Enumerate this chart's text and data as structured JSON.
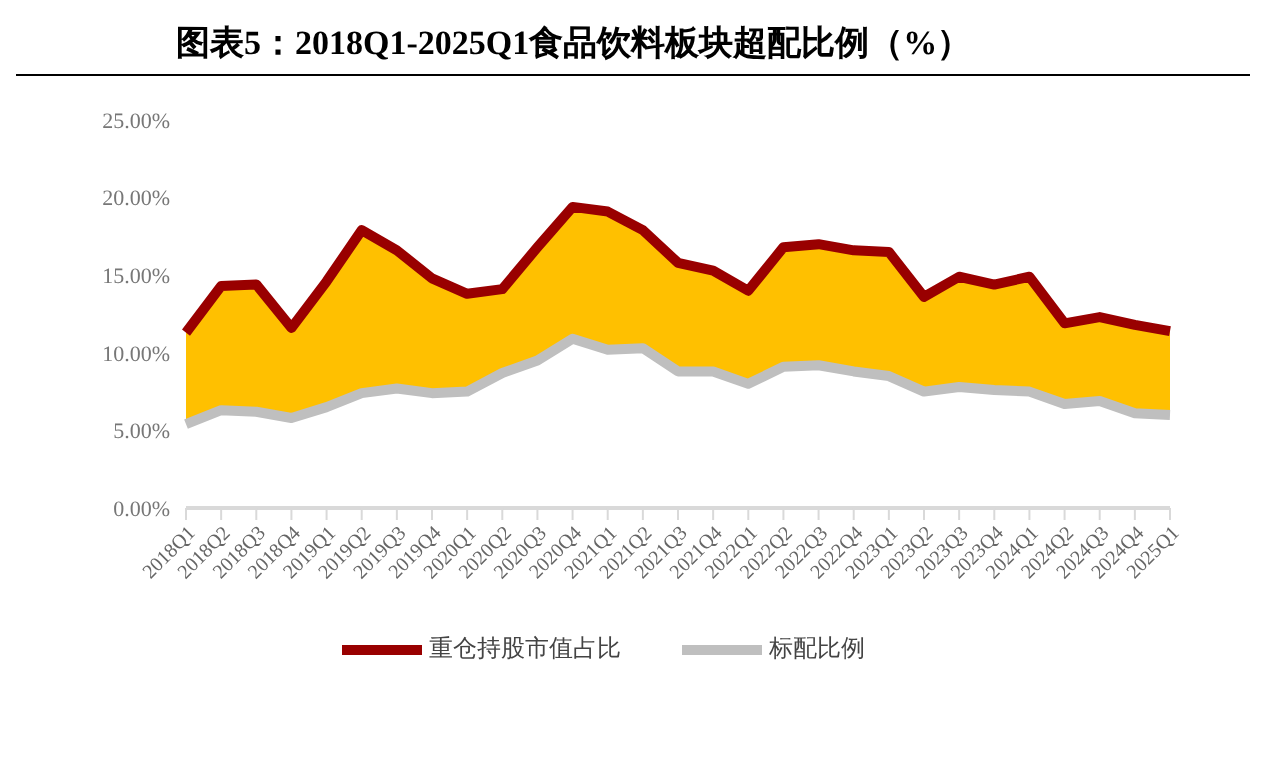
{
  "chart_data": {
    "type": "line",
    "title": "图表5：2018Q1-2025Q1食品饮料板块超配比例（%）",
    "categories": [
      "2018Q1",
      "2018Q2",
      "2018Q3",
      "2018Q4",
      "2019Q1",
      "2019Q2",
      "2019Q3",
      "2019Q4",
      "2020Q1",
      "2020Q2",
      "2020Q3",
      "2020Q4",
      "2021Q1",
      "2021Q2",
      "2021Q3",
      "2021Q4",
      "2022Q1",
      "2022Q2",
      "2022Q3",
      "2022Q4",
      "2023Q1",
      "2023Q2",
      "2023Q3",
      "2023Q4",
      "2024Q1",
      "2024Q2",
      "2024Q3",
      "2024Q4",
      "2025Q1"
    ],
    "series": [
      {
        "name": "重仓持股市值占比",
        "color": "#990000",
        "values": [
          11.3,
          14.3,
          14.4,
          11.6,
          14.6,
          17.9,
          16.6,
          14.8,
          13.8,
          14.1,
          16.8,
          19.4,
          19.1,
          17.9,
          15.8,
          15.3,
          14.0,
          16.8,
          17.0,
          16.6,
          16.5,
          13.6,
          14.9,
          14.4,
          14.9,
          11.9,
          12.3,
          11.8,
          11.4
        ],
        "lower": [
          5.4,
          6.3,
          6.2,
          5.8,
          6.5,
          7.4,
          7.7,
          7.4,
          7.5,
          8.7,
          9.5,
          10.9,
          10.2,
          10.3,
          8.8,
          8.8,
          8.0,
          9.1,
          9.2,
          8.8,
          8.5,
          7.5,
          7.8,
          7.6,
          7.5,
          6.7,
          6.9,
          6.1,
          6.0
        ],
        "upper": [
          11.3,
          14.3,
          14.4,
          11.6,
          14.6,
          17.9,
          16.6,
          14.8,
          13.8,
          14.1,
          16.8,
          19.4,
          19.1,
          17.9,
          15.8,
          15.3,
          14.0,
          16.8,
          17.0,
          16.6,
          16.5,
          13.6,
          14.9,
          14.4,
          14.9,
          11.9,
          12.3,
          11.8,
          11.4
        ]
      },
      {
        "name": "标配比例",
        "color": "#bfbfbf",
        "values": [
          5.4,
          6.3,
          6.2,
          5.8,
          6.5,
          7.4,
          7.7,
          7.4,
          7.5,
          8.7,
          9.5,
          10.9,
          10.2,
          10.3,
          8.8,
          8.8,
          8.0,
          9.1,
          9.2,
          8.8,
          8.5,
          7.5,
          7.8,
          7.6,
          7.5,
          6.7,
          6.9,
          6.1,
          6.0
        ]
      }
    ],
    "ylim": [
      0,
      25
    ],
    "yticks": [
      {
        "value": 0,
        "label": "0.00%"
      },
      {
        "value": 5,
        "label": "5.00%"
      },
      {
        "value": 10,
        "label": "10.00%"
      },
      {
        "value": 15,
        "label": "15.00%"
      },
      {
        "value": 20,
        "label": "20.00%"
      },
      {
        "value": 25,
        "label": "25.00%"
      }
    ],
    "legend": "bottom",
    "marker": "none",
    "line_style": "solid"
  }
}
